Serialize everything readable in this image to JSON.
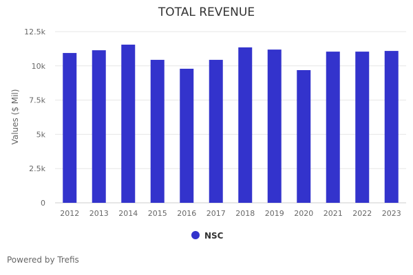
{
  "chart_data": {
    "type": "bar",
    "title": "TOTAL REVENUE",
    "xlabel": "",
    "ylabel": "Values ($ Mil)",
    "categories": [
      "2012",
      "2013",
      "2014",
      "2015",
      "2016",
      "2017",
      "2018",
      "2019",
      "2020",
      "2021",
      "2022",
      "2023"
    ],
    "series": [
      {
        "name": "NSC",
        "color": "#3333cc",
        "values": [
          10940,
          11140,
          11550,
          10440,
          9790,
          10440,
          11350,
          11190,
          9690,
          11040,
          11040,
          11090
        ]
      }
    ],
    "ylim": [
      0,
      12500
    ],
    "yticks": [
      0,
      2500,
      5000,
      7500,
      10000,
      12500
    ],
    "ytick_labels": [
      "0",
      "2.5k",
      "5k",
      "7.5k",
      "10k",
      "12.5k"
    ],
    "grid": true,
    "legend": "bottom-center"
  },
  "footer": "Powered by Trefis"
}
